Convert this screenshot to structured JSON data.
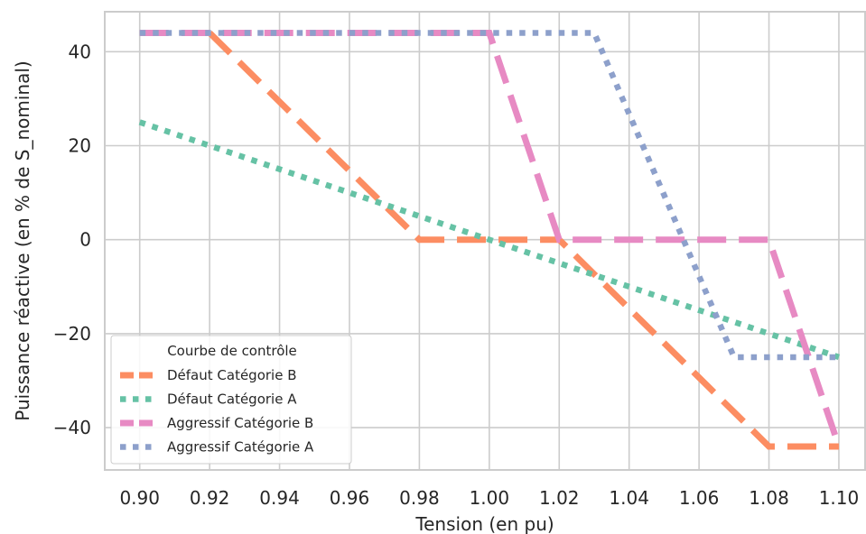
{
  "chart_data": {
    "type": "line",
    "xlabel": "Tension (en pu)",
    "ylabel": "Puissance réactive (en % de S_nominal)",
    "xlim": [
      0.89,
      1.1075
    ],
    "ylim": [
      -49,
      48.5
    ],
    "x_ticks": [
      0.9,
      0.92,
      0.94,
      0.96,
      0.98,
      1.0,
      1.02,
      1.04,
      1.06,
      1.08,
      1.1
    ],
    "x_tick_labels": [
      "0.90",
      "0.92",
      "0.94",
      "0.96",
      "0.98",
      "1.00",
      "1.02",
      "1.04",
      "1.06",
      "1.08",
      "1.10"
    ],
    "y_ticks": [
      40,
      20,
      0,
      -20,
      -40
    ],
    "y_tick_labels": [
      "40",
      "20",
      "0",
      "−20",
      "−40"
    ],
    "grid": true,
    "legend": {
      "title": "Courbe de contrôle",
      "position": "lower-left"
    },
    "series": [
      {
        "name": "Défaut Catégorie B",
        "color": "#fc8d62",
        "style": "dashed",
        "x": [
          0.92,
          0.98,
          1.02,
          1.08,
          1.1
        ],
        "y": [
          44,
          0,
          0,
          -44,
          -44
        ]
      },
      {
        "name": "Défaut Catégorie A",
        "color": "#66c2a5",
        "style": "dotted",
        "x": [
          0.9,
          1.0,
          1.1
        ],
        "y": [
          25,
          0,
          -25
        ]
      },
      {
        "name": "Aggressif Catégorie B",
        "color": "#e78ac3",
        "style": "dashed",
        "x": [
          0.9,
          1.0,
          1.02,
          1.08,
          1.1
        ],
        "y": [
          44,
          44,
          0,
          0,
          -44
        ]
      },
      {
        "name": "Aggressif Catégorie A",
        "color": "#8da0cb",
        "style": "dotted",
        "x": [
          0.9,
          1.03,
          1.07,
          1.1
        ],
        "y": [
          44,
          44,
          -25,
          -25
        ]
      }
    ]
  }
}
